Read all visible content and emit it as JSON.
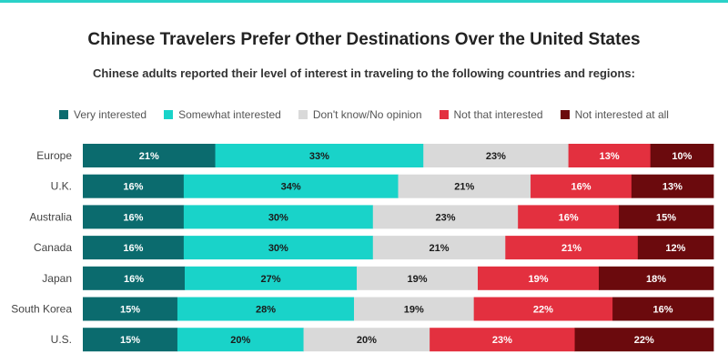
{
  "page": {
    "title": "Chinese Travelers Prefer Other Destinations Over the United States",
    "subtitle": "Chinese adults reported their level of interest in traveling to the following countries and regions:"
  },
  "chart_data": {
    "type": "bar",
    "orientation": "horizontal",
    "stacked": true,
    "normalized_percent": true,
    "title": "Chinese Travelers Prefer Other Destinations Over the United States",
    "subtitle": "Chinese adults reported their level of interest in traveling to the following countries and regions:",
    "xlabel": "",
    "ylabel": "",
    "legend_position": "top",
    "grid": false,
    "categories": [
      "Europe",
      "U.K.",
      "Australia",
      "Canada",
      "Japan",
      "South Korea",
      "U.S."
    ],
    "series": [
      {
        "name": "Very interested",
        "color": "#0b6b6e",
        "label_color": "#ffffff",
        "values": [
          21,
          16,
          16,
          16,
          16,
          15,
          15
        ]
      },
      {
        "name": "Somewhat interested",
        "color": "#19d3c9",
        "label_color": "#1a1a1a",
        "values": [
          33,
          34,
          30,
          30,
          27,
          28,
          20
        ]
      },
      {
        "name": "Don't know/No opinion",
        "color": "#d9d9d9",
        "label_color": "#1a1a1a",
        "values": [
          23,
          21,
          23,
          21,
          19,
          19,
          20
        ]
      },
      {
        "name": "Not that interested",
        "color": "#e3303f",
        "label_color": "#ffffff",
        "values": [
          13,
          16,
          16,
          21,
          19,
          22,
          23
        ]
      },
      {
        "name": "Not interested at all",
        "color": "#6b0a0d",
        "label_color": "#ffffff",
        "values": [
          10,
          13,
          15,
          12,
          18,
          16,
          22
        ]
      }
    ]
  }
}
